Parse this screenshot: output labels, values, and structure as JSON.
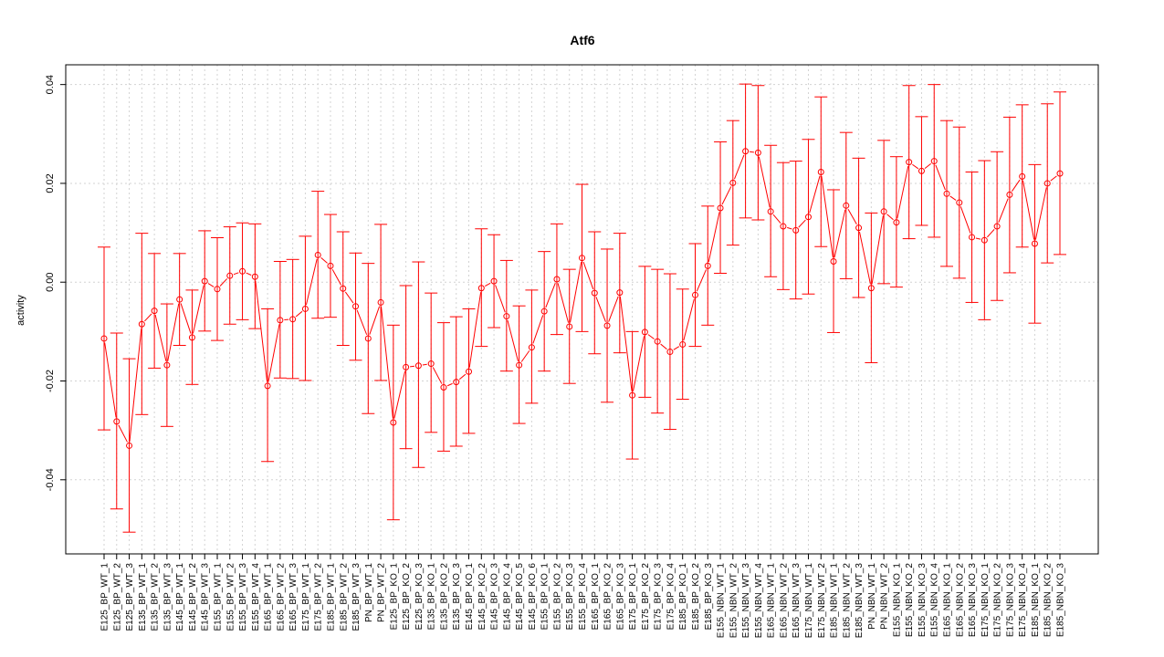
{
  "chart_data": {
    "type": "line",
    "title": "Atf6",
    "xlabel": "",
    "ylabel": "activity",
    "ylim": [
      -0.055,
      0.044
    ],
    "yticks": [
      -0.04,
      -0.02,
      0.0,
      0.02,
      0.04
    ],
    "ytick_labels": [
      "-0.04",
      "-0.02",
      "0.00",
      "0.02",
      "0.04"
    ],
    "grid": true,
    "color": "#ff0000",
    "categories": [
      "E125_BP_WT_1",
      "E125_BP_WT_2",
      "E125_BP_WT_3",
      "E135_BP_WT_1",
      "E135_BP_WT_2",
      "E135_BP_WT_3",
      "E145_BP_WT_1",
      "E145_BP_WT_2",
      "E145_BP_WT_3",
      "E155_BP_WT_1",
      "E155_BP_WT_2",
      "E155_BP_WT_3",
      "E155_BP_WT_4",
      "E165_BP_WT_1",
      "E165_BP_WT_2",
      "E165_BP_WT_3",
      "E175_BP_WT_1",
      "E175_BP_WT_2",
      "E185_BP_WT_1",
      "E185_BP_WT_2",
      "E185_BP_WT_3",
      "PN_BP_WT_1",
      "PN_BP_WT_2",
      "E125_BP_KO_1",
      "E125_BP_KO_2",
      "E125_BP_KO_3",
      "E135_BP_KO_1",
      "E135_BP_KO_2",
      "E135_BP_KO_3",
      "E145_BP_KO_1",
      "E145_BP_KO_2",
      "E145_BP_KO_3",
      "E145_BP_KO_4",
      "E145_BP_KO_5",
      "E145_BP_KO_6",
      "E155_BP_KO_1",
      "E155_BP_KO_2",
      "E155_BP_KO_3",
      "E155_BP_KO_4",
      "E165_BP_KO_1",
      "E165_BP_KO_2",
      "E165_BP_KO_3",
      "E175_BP_KO_1",
      "E175_BP_KO_2",
      "E175_BP_KO_3",
      "E175_BP_KO_4",
      "E185_BP_KO_1",
      "E185_BP_KO_2",
      "E185_BP_KO_3",
      "E155_NBN_WT_1",
      "E155_NBN_WT_2",
      "E155_NBN_WT_3",
      "E155_NBN_WT_4",
      "E165_NBN_WT_1",
      "E165_NBN_WT_2",
      "E165_NBN_WT_3",
      "E175_NBN_WT_1",
      "E175_NBN_WT_2",
      "E185_NBN_WT_1",
      "E185_NBN_WT_2",
      "E185_NBN_WT_3",
      "PN_NBN_WT_1",
      "PN_NBN_WT_2",
      "E155_NBN_KO_1",
      "E155_NBN_KO_2",
      "E155_NBN_KO_3",
      "E155_NBN_KO_4",
      "E165_NBN_KO_1",
      "E165_NBN_KO_2",
      "E165_NBN_KO_3",
      "E175_NBN_KO_1",
      "E175_NBN_KO_2",
      "E175_NBN_KO_3",
      "E175_NBN_KO_4",
      "E185_NBN_KO_1",
      "E185_NBN_KO_2",
      "E185_NBN_KO_3"
    ],
    "values": [
      -0.0114,
      -0.0282,
      -0.0331,
      -0.0085,
      -0.0058,
      -0.0168,
      -0.0035,
      -0.0112,
      0.0002,
      -0.0014,
      0.0013,
      0.0022,
      0.0011,
      -0.021,
      -0.0077,
      -0.0075,
      -0.0054,
      0.0055,
      0.0033,
      -0.0013,
      -0.0049,
      -0.0114,
      -0.0041,
      -0.0284,
      -0.0172,
      -0.0169,
      -0.0165,
      -0.0213,
      -0.0202,
      -0.0181,
      -0.0012,
      0.0002,
      -0.0069,
      -0.0168,
      -0.0132,
      -0.0059,
      0.0006,
      -0.009,
      0.0049,
      -0.0022,
      -0.0088,
      -0.0021,
      -0.0229,
      -0.0101,
      -0.012,
      -0.0141,
      -0.0126,
      -0.0026,
      0.0033,
      0.015,
      0.0201,
      0.0265,
      0.0262,
      0.0143,
      0.0113,
      0.0105,
      0.0132,
      0.0223,
      0.0042,
      0.0155,
      0.011,
      -0.0012,
      0.0143,
      0.0121,
      0.0243,
      0.0225,
      0.0245,
      0.0179,
      0.0161,
      0.0091,
      0.0085,
      0.0113,
      0.0177,
      0.0214,
      0.0078,
      0.02,
      0.022
    ],
    "upper": [
      0.0071,
      -0.0103,
      -0.0155,
      0.0099,
      0.0058,
      -0.0044,
      0.0058,
      -0.0016,
      0.0104,
      0.009,
      0.0112,
      0.012,
      0.0118,
      -0.0054,
      0.0042,
      0.0046,
      0.0093,
      0.0184,
      0.0137,
      0.0102,
      0.0059,
      0.0038,
      0.0117,
      -0.0087,
      -0.0007,
      0.0041,
      -0.0022,
      -0.0082,
      -0.007,
      -0.0054,
      0.0108,
      0.0096,
      0.0044,
      -0.0048,
      -0.0016,
      0.0062,
      0.0118,
      0.0026,
      0.0198,
      0.0102,
      0.0067,
      0.0099,
      -0.01,
      0.0032,
      0.0026,
      0.0017,
      -0.0014,
      0.0078,
      0.0154,
      0.0284,
      0.0327,
      0.0401,
      0.0398,
      0.0277,
      0.0242,
      0.0245,
      0.0289,
      0.0375,
      0.0187,
      0.0303,
      0.0251,
      0.014,
      0.0287,
      0.0254,
      0.0398,
      0.0335,
      0.04,
      0.0327,
      0.0314,
      0.0223,
      0.0246,
      0.0264,
      0.0334,
      0.0359,
      0.0238,
      0.0361,
      0.0385
    ],
    "lower": [
      -0.0299,
      -0.0459,
      -0.0506,
      -0.0268,
      -0.0174,
      -0.0292,
      -0.0128,
      -0.0207,
      -0.0099,
      -0.0118,
      -0.0085,
      -0.0076,
      -0.0094,
      -0.0363,
      -0.0194,
      -0.0195,
      -0.0199,
      -0.0073,
      -0.0071,
      -0.0128,
      -0.0158,
      -0.0266,
      -0.0199,
      -0.0481,
      -0.0337,
      -0.0375,
      -0.0304,
      -0.0342,
      -0.0332,
      -0.0306,
      -0.013,
      -0.0092,
      -0.018,
      -0.0286,
      -0.0245,
      -0.018,
      -0.0106,
      -0.0205,
      -0.01,
      -0.0145,
      -0.0243,
      -0.0143,
      -0.0358,
      -0.0233,
      -0.0265,
      -0.0298,
      -0.0237,
      -0.013,
      -0.0087,
      0.0018,
      0.0075,
      0.013,
      0.0126,
      0.0011,
      -0.0015,
      -0.0034,
      -0.0024,
      0.0072,
      -0.0102,
      0.0007,
      -0.0031,
      -0.0163,
      -0.0003,
      -0.001,
      0.0088,
      0.0115,
      0.0091,
      0.0032,
      0.0008,
      -0.0041,
      -0.0076,
      -0.0037,
      0.0019,
      0.0071,
      -0.0083,
      0.0039,
      0.0056
    ]
  }
}
